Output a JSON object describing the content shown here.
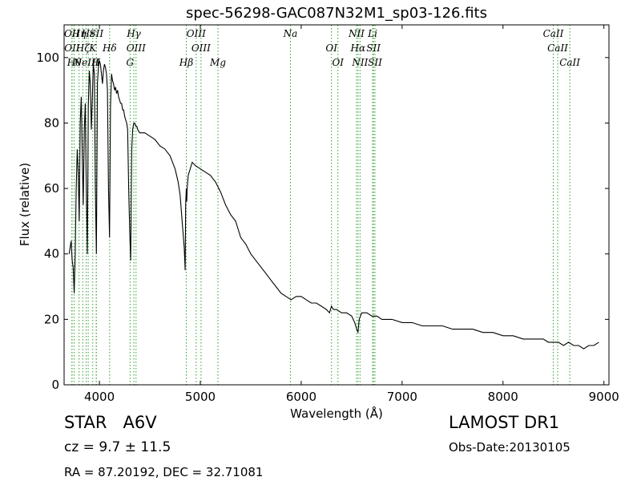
{
  "chart_data": {
    "type": "line",
    "title": "spec-56298-GAC087N32M1_sp03-126.fits",
    "xlabel": "Wavelength (Å)",
    "ylabel": "Flux (relative)",
    "xlim": [
      3650,
      9050
    ],
    "ylim": [
      0,
      110
    ],
    "xticks": [
      4000,
      5000,
      6000,
      7000,
      8000,
      9000
    ],
    "yticks": [
      0,
      20,
      40,
      60,
      80,
      100
    ],
    "grid": false,
    "line_color": "#000000",
    "marker_color": "#2ca02c",
    "series": [
      {
        "x": [
          3700,
          3710,
          3720,
          3730,
          3740,
          3750,
          3760,
          3770,
          3780,
          3790,
          3800,
          3810,
          3820,
          3830,
          3840,
          3850,
          3860,
          3870,
          3880,
          3890,
          3900,
          3910,
          3920,
          3930,
          3940,
          3950,
          3960,
          3970,
          3980,
          3990,
          4000,
          4010,
          4020,
          4030,
          4040,
          4050,
          4060,
          4070,
          4080,
          4090,
          4100,
          4110,
          4120,
          4130,
          4140,
          4150,
          4160,
          4170,
          4180,
          4190,
          4200,
          4210,
          4220,
          4230,
          4240,
          4250,
          4260,
          4270,
          4280,
          4290,
          4300,
          4310,
          4320,
          4330,
          4340,
          4350,
          4360,
          4370,
          4380,
          4400,
          4450,
          4500,
          4550,
          4600,
          4650,
          4700,
          4750,
          4780,
          4800,
          4820,
          4840,
          4850,
          4855,
          4861,
          4866,
          4870,
          4880,
          4900,
          4920,
          4950,
          5000,
          5050,
          5100,
          5150,
          5200,
          5250,
          5300,
          5350,
          5400,
          5450,
          5500,
          5550,
          5600,
          5650,
          5700,
          5750,
          5800,
          5850,
          5900,
          5950,
          6000,
          6050,
          6100,
          6150,
          6200,
          6250,
          6280,
          6300,
          6320,
          6350,
          6400,
          6450,
          6500,
          6530,
          6550,
          6563,
          6575,
          6600,
          6650,
          6700,
          6750,
          6800,
          6900,
          7000,
          7100,
          7200,
          7300,
          7400,
          7500,
          7600,
          7700,
          7800,
          7900,
          8000,
          8100,
          8200,
          8300,
          8400,
          8450,
          8500,
          8550,
          8600,
          8650,
          8700,
          8750,
          8800,
          8850,
          8900,
          8950
        ],
        "y": [
          40,
          42,
          44,
          38,
          36,
          28,
          40,
          60,
          72,
          65,
          50,
          80,
          88,
          70,
          55,
          78,
          86,
          60,
          40,
          85,
          96,
          92,
          78,
          88,
          98,
          95,
          60,
          40,
          92,
          97,
          99,
          98,
          95,
          92,
          96,
          98,
          97,
          95,
          90,
          60,
          45,
          85,
          95,
          93,
          92,
          90,
          91,
          89,
          90,
          88,
          87,
          86,
          86,
          84,
          84,
          82,
          81,
          80,
          78,
          60,
          47,
          38,
          72,
          78,
          80,
          80,
          79,
          79,
          78,
          77,
          77,
          76,
          75,
          73,
          72,
          70,
          66,
          62,
          58,
          50,
          42,
          35,
          55,
          60,
          56,
          60,
          64,
          66,
          68,
          67,
          66,
          65,
          64,
          62,
          59,
          55,
          52,
          50,
          45,
          43,
          40,
          38,
          36,
          34,
          32,
          30,
          28,
          27,
          26,
          27,
          27,
          26,
          25,
          25,
          24,
          23,
          22,
          24,
          23,
          23,
          22,
          22,
          21,
          19,
          17,
          16,
          20,
          22,
          22,
          21,
          21,
          20,
          20,
          19,
          19,
          18,
          18,
          18,
          17,
          17,
          17,
          16,
          16,
          15,
          15,
          14,
          14,
          14,
          13,
          13,
          13,
          12,
          13,
          12,
          12,
          11,
          12,
          12,
          13
        ]
      }
    ],
    "lines": [
      {
        "wave": 3727,
        "label": "OII"
      },
      {
        "wave": 3729,
        "label": "OII"
      },
      {
        "wave": 3750,
        "label": "Hθ"
      },
      {
        "wave": 3798,
        "label": "Hη"
      },
      {
        "wave": 3835,
        "label": "Hζ"
      },
      {
        "wave": 3869,
        "label": "NeIII"
      },
      {
        "wave": 3889,
        "label": "Hε"
      },
      {
        "wave": 3934,
        "label": "K"
      },
      {
        "wave": 3968,
        "label": "H"
      },
      {
        "wave": 3970,
        "label": "SII"
      },
      {
        "wave": 4101,
        "label": "Hδ"
      },
      {
        "wave": 4304,
        "label": "G"
      },
      {
        "wave": 4341,
        "label": "Hγ"
      },
      {
        "wave": 4363,
        "label": "OIII"
      },
      {
        "wave": 4861,
        "label": "Hβ"
      },
      {
        "wave": 4959,
        "label": "OIII"
      },
      {
        "wave": 5007,
        "label": "OIII"
      },
      {
        "wave": 5175,
        "label": "Mg"
      },
      {
        "wave": 5893,
        "label": "Na"
      },
      {
        "wave": 6300,
        "label": "OI"
      },
      {
        "wave": 6364,
        "label": "OI"
      },
      {
        "wave": 6548,
        "label": "NII"
      },
      {
        "wave": 6563,
        "label": "Hα"
      },
      {
        "wave": 6583,
        "label": "NII"
      },
      {
        "wave": 6708,
        "label": "Li"
      },
      {
        "wave": 6716,
        "label": "SII"
      },
      {
        "wave": 6731,
        "label": "SII"
      },
      {
        "wave": 8498,
        "label": "CaII"
      },
      {
        "wave": 8542,
        "label": "CaII"
      },
      {
        "wave": 8662,
        "label": "CaII"
      }
    ]
  },
  "info": {
    "object_type": "STAR",
    "subclass": "A6V",
    "survey": "LAMOST DR1",
    "redshift": "cz = 9.7 ± 11.5",
    "obs_date": "Obs-Date:20130105",
    "coords": "RA = 87.20192, DEC = 32.71081"
  }
}
